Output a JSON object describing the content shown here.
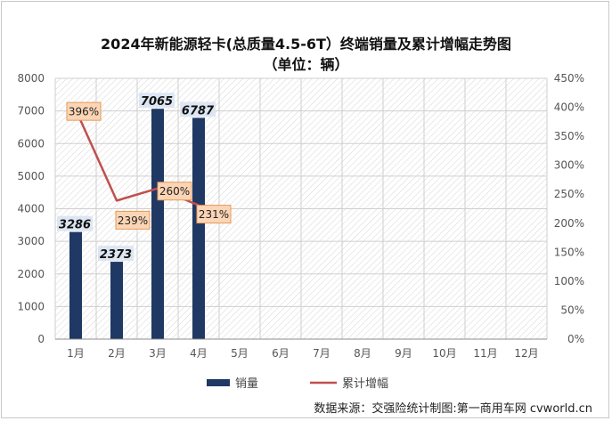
{
  "chart_data": {
    "type": "bar",
    "title": "2024年新能源轻卡(总质量4.5-6T）终端销量及累计增幅走势图",
    "subtitle": "（单位：辆）",
    "categories": [
      "1月",
      "2月",
      "3月",
      "4月",
      "5月",
      "6月",
      "7月",
      "8月",
      "9月",
      "10月",
      "11月",
      "12月"
    ],
    "series": [
      {
        "name": "销量",
        "type": "bar",
        "axis": "left",
        "values": [
          3286,
          2373,
          7065,
          6787,
          null,
          null,
          null,
          null,
          null,
          null,
          null,
          null
        ]
      },
      {
        "name": "累计增幅",
        "type": "line",
        "axis": "right",
        "values": [
          396,
          239,
          260,
          231,
          null,
          null,
          null,
          null,
          null,
          null,
          null,
          null
        ]
      }
    ],
    "data_labels_bar": [
      "3286",
      "2373",
      "7065",
      "6787"
    ],
    "data_labels_line": [
      "396%",
      "239%",
      "260%",
      "231%"
    ],
    "y_left": {
      "min": 0,
      "max": 8000,
      "ticks": [
        "0",
        "1000",
        "2000",
        "3000",
        "4000",
        "5000",
        "6000",
        "7000",
        "8000"
      ]
    },
    "y_right": {
      "min": 0,
      "max": 450,
      "ticks": [
        "0%",
        "50%",
        "100%",
        "150%",
        "200%",
        "250%",
        "300%",
        "350%",
        "400%",
        "450%"
      ]
    },
    "legend_position": "bottom",
    "grid": true,
    "colors": {
      "bar": "#1f3864",
      "line": "#c0504d",
      "label_fill": "#fbd5b5",
      "label_border": "#e59a58"
    }
  },
  "source": "数据来源：交强险统计制图:第一商用车网 cvworld.cn"
}
